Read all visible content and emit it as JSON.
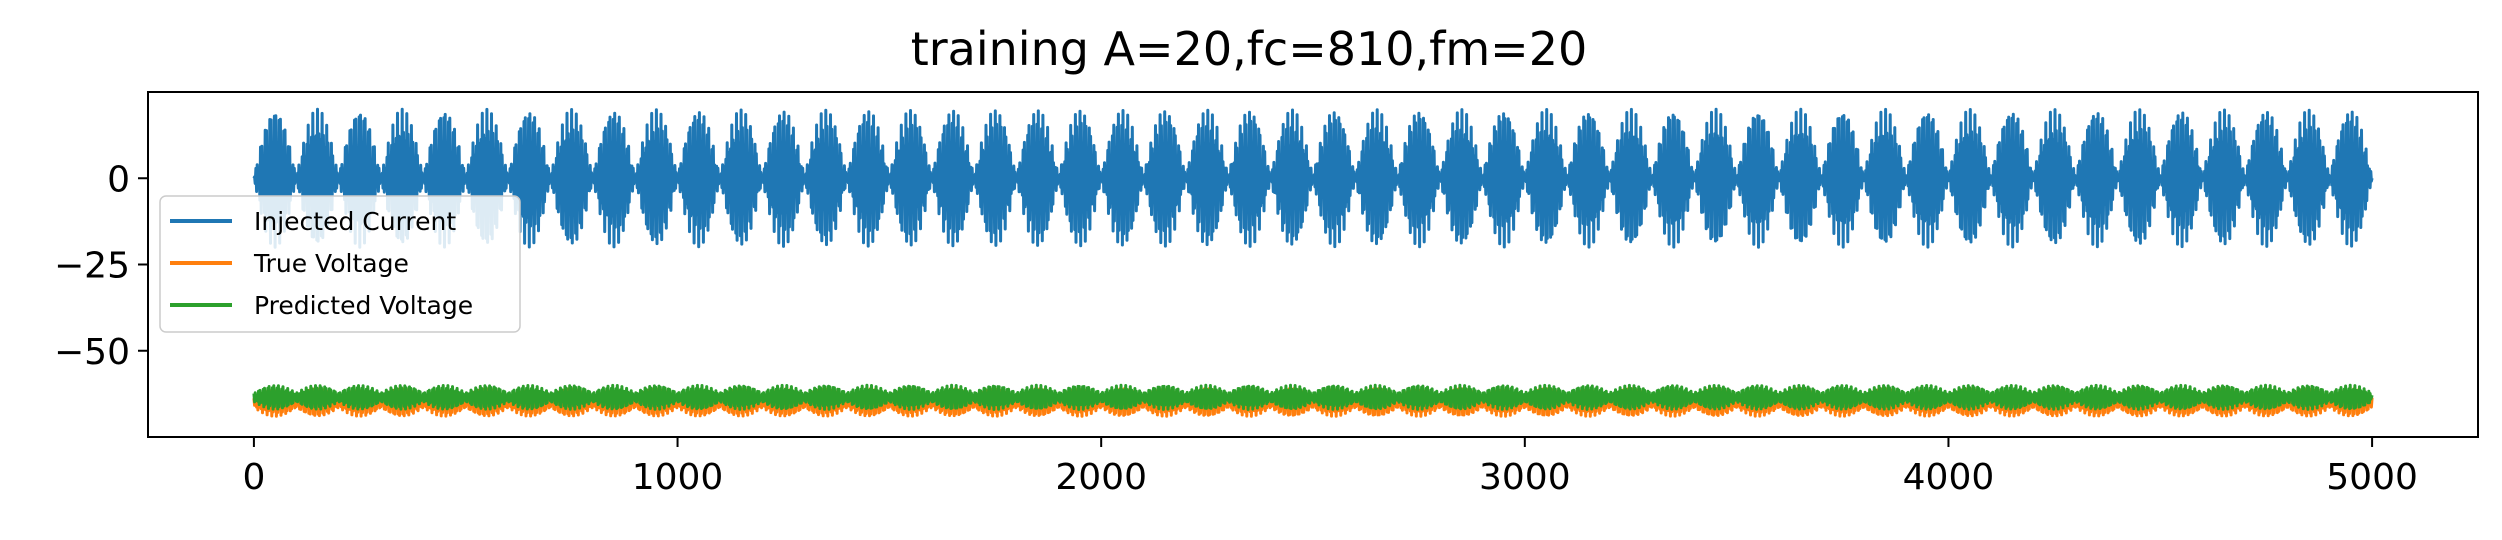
{
  "chart_data": {
    "type": "line",
    "title": "training A=20,fc=810,fm=20",
    "xlabel": "",
    "ylabel": "",
    "xlim": [
      -250,
      5250
    ],
    "ylim": [
      -75,
      25
    ],
    "x_ticks": [
      0,
      1000,
      2000,
      3000,
      4000,
      5000
    ],
    "x_tick_labels": [
      "0",
      "1000",
      "2000",
      "3000",
      "4000",
      "5000"
    ],
    "y_ticks": [
      0,
      -25,
      -50
    ],
    "y_tick_labels": [
      "0",
      "−25",
      "−50"
    ],
    "grid": false,
    "legend_position": "center-left",
    "x_range": [
      0,
      5000
    ],
    "series": [
      {
        "name": "Injected Current",
        "color": "#1f77b4",
        "description_values": {
          "center": 0,
          "envelope_max": 20,
          "envelope_min": -20,
          "envelope_periods": 50
        }
      },
      {
        "name": "True Voltage",
        "color": "#ff7f0e",
        "description_values": {
          "center": -65,
          "envelope_max": -61,
          "envelope_min": -69,
          "envelope_periods": 50
        }
      },
      {
        "name": "Predicted Voltage",
        "color": "#2ca02c",
        "description_values": {
          "center": -64,
          "envelope_max": -60,
          "envelope_min": -67,
          "envelope_periods": 50
        }
      }
    ]
  }
}
